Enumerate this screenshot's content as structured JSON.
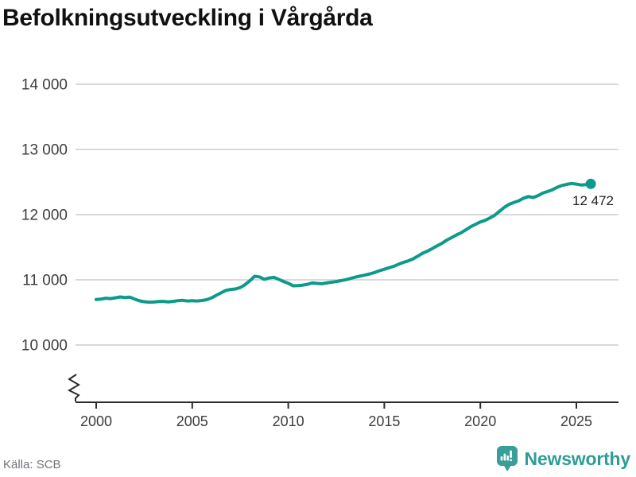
{
  "header": {
    "title": "Befolkningsutveckling i Vårgårda"
  },
  "footer": {
    "source": "Källa: SCB",
    "brand": "Newsworthy"
  },
  "colors": {
    "line": "#0d9a8c",
    "grid": "#d9d9d9",
    "axis": "#2a2a2a",
    "tick_label": "#3d3d3d",
    "title": "#111111",
    "end_label": "#1f1f1f",
    "source": "#73737d",
    "brand_teal": "#2e9d96",
    "logo_bubble": "#3a9e98"
  },
  "chart_data": {
    "type": "line",
    "title": "Befolkningsutveckling i Vårgårda",
    "xlabel": "",
    "ylabel": "",
    "grid": "horizontal",
    "legend": "none",
    "axis_break": true,
    "ylim": [
      10000,
      14000
    ],
    "xlim": [
      2000,
      2026
    ],
    "y_ticks": [
      {
        "value": 14000,
        "label": "14 000"
      },
      {
        "value": 13000,
        "label": "13 000"
      },
      {
        "value": 12000,
        "label": "12 000"
      },
      {
        "value": 11000,
        "label": "11 000"
      },
      {
        "value": 10000,
        "label": "10 000"
      }
    ],
    "x_ticks": [
      {
        "value": 2000,
        "label": "2000"
      },
      {
        "value": 2005,
        "label": "2005"
      },
      {
        "value": 2010,
        "label": "2010"
      },
      {
        "value": 2015,
        "label": "2015"
      },
      {
        "value": 2020,
        "label": "2020"
      },
      {
        "value": 2025,
        "label": "2025"
      }
    ],
    "series": [
      {
        "name": "Befolkning i Vårgårda",
        "points": [
          [
            2000.0,
            10697
          ],
          [
            2000.25,
            10705
          ],
          [
            2000.5,
            10718
          ],
          [
            2000.75,
            10712
          ],
          [
            2001.0,
            10725
          ],
          [
            2001.25,
            10738
          ],
          [
            2001.5,
            10728
          ],
          [
            2001.75,
            10735
          ],
          [
            2002.0,
            10705
          ],
          [
            2002.25,
            10678
          ],
          [
            2002.5,
            10665
          ],
          [
            2002.75,
            10657
          ],
          [
            2003.0,
            10660
          ],
          [
            2003.25,
            10667
          ],
          [
            2003.5,
            10670
          ],
          [
            2003.75,
            10662
          ],
          [
            2004.0,
            10670
          ],
          [
            2004.25,
            10680
          ],
          [
            2004.5,
            10685
          ],
          [
            2004.75,
            10676
          ],
          [
            2005.0,
            10680
          ],
          [
            2005.25,
            10676
          ],
          [
            2005.5,
            10683
          ],
          [
            2005.75,
            10695
          ],
          [
            2006.0,
            10722
          ],
          [
            2006.25,
            10762
          ],
          [
            2006.5,
            10800
          ],
          [
            2006.75,
            10838
          ],
          [
            2007.0,
            10852
          ],
          [
            2007.25,
            10860
          ],
          [
            2007.5,
            10882
          ],
          [
            2007.75,
            10925
          ],
          [
            2008.0,
            10985
          ],
          [
            2008.25,
            11055
          ],
          [
            2008.5,
            11045
          ],
          [
            2008.75,
            11008
          ],
          [
            2009.0,
            11028
          ],
          [
            2009.25,
            11038
          ],
          [
            2009.5,
            11008
          ],
          [
            2009.75,
            10975
          ],
          [
            2010.0,
            10948
          ],
          [
            2010.25,
            10908
          ],
          [
            2010.5,
            10912
          ],
          [
            2010.75,
            10918
          ],
          [
            2011.0,
            10932
          ],
          [
            2011.25,
            10952
          ],
          [
            2011.5,
            10945
          ],
          [
            2011.75,
            10940
          ],
          [
            2012.0,
            10952
          ],
          [
            2012.25,
            10963
          ],
          [
            2012.5,
            10975
          ],
          [
            2012.75,
            10988
          ],
          [
            2013.0,
            11002
          ],
          [
            2013.25,
            11022
          ],
          [
            2013.5,
            11042
          ],
          [
            2013.75,
            11058
          ],
          [
            2014.0,
            11075
          ],
          [
            2014.25,
            11092
          ],
          [
            2014.5,
            11112
          ],
          [
            2014.75,
            11140
          ],
          [
            2015.0,
            11162
          ],
          [
            2015.25,
            11185
          ],
          [
            2015.5,
            11208
          ],
          [
            2015.75,
            11240
          ],
          [
            2016.0,
            11268
          ],
          [
            2016.25,
            11292
          ],
          [
            2016.5,
            11322
          ],
          [
            2016.75,
            11365
          ],
          [
            2017.0,
            11408
          ],
          [
            2017.25,
            11442
          ],
          [
            2017.5,
            11480
          ],
          [
            2017.75,
            11522
          ],
          [
            2018.0,
            11560
          ],
          [
            2018.25,
            11608
          ],
          [
            2018.5,
            11648
          ],
          [
            2018.75,
            11688
          ],
          [
            2019.0,
            11722
          ],
          [
            2019.25,
            11768
          ],
          [
            2019.5,
            11815
          ],
          [
            2019.75,
            11852
          ],
          [
            2020.0,
            11888
          ],
          [
            2020.25,
            11912
          ],
          [
            2020.5,
            11950
          ],
          [
            2020.75,
            11992
          ],
          [
            2021.0,
            12052
          ],
          [
            2021.25,
            12112
          ],
          [
            2021.5,
            12158
          ],
          [
            2021.75,
            12188
          ],
          [
            2022.0,
            12212
          ],
          [
            2022.25,
            12252
          ],
          [
            2022.5,
            12278
          ],
          [
            2022.75,
            12262
          ],
          [
            2023.0,
            12292
          ],
          [
            2023.25,
            12330
          ],
          [
            2023.5,
            12355
          ],
          [
            2023.75,
            12382
          ],
          [
            2024.0,
            12420
          ],
          [
            2024.25,
            12448
          ],
          [
            2024.5,
            12465
          ],
          [
            2024.75,
            12478
          ],
          [
            2025.0,
            12468
          ],
          [
            2025.25,
            12455
          ],
          [
            2025.5,
            12460
          ],
          [
            2025.75,
            12472
          ]
        ]
      }
    ],
    "end_annotation": {
      "label": "12 472",
      "value": 12472,
      "x": 2025.75
    }
  }
}
